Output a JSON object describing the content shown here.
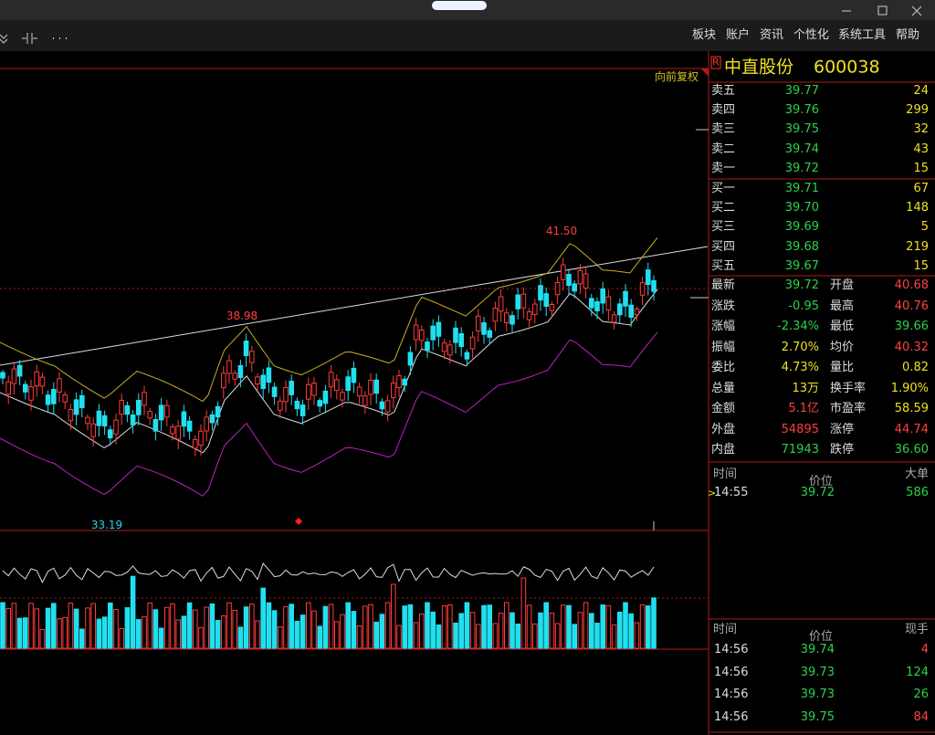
{
  "window": {
    "menu": [
      "板块",
      "账户",
      "资讯",
      "个性化",
      "系统工具",
      "帮助"
    ]
  },
  "chart": {
    "adjust": "向前复权",
    "high": "41.50",
    "mid": "38.98",
    "low": "33.19"
  },
  "quote": {
    "flag": "R",
    "name": "中直股份",
    "code": "600038",
    "sell": [
      [
        "卖五",
        "39.77",
        "24"
      ],
      [
        "卖四",
        "39.76",
        "299"
      ],
      [
        "卖三",
        "39.75",
        "32"
      ],
      [
        "卖二",
        "39.74",
        "43"
      ],
      [
        "卖一",
        "39.72",
        "15"
      ]
    ],
    "buy": [
      [
        "买一",
        "39.71",
        "67"
      ],
      [
        "买二",
        "39.70",
        "148"
      ],
      [
        "买三",
        "39.69",
        "5"
      ],
      [
        "买四",
        "39.68",
        "219"
      ],
      [
        "买五",
        "39.67",
        "15"
      ]
    ],
    "stats": [
      [
        {
          "label": "最新",
          "value": "39.72",
          "color": "#2ed14a"
        },
        {
          "label": "开盘",
          "value": "40.68",
          "color": "#ff4040"
        }
      ],
      [
        {
          "label": "涨跌",
          "value": "-0.95",
          "color": "#2ed14a"
        },
        {
          "label": "最高",
          "value": "40.76",
          "color": "#ff4040"
        }
      ],
      [
        {
          "label": "涨幅",
          "value": "-2.34%",
          "color": "#2ed14a"
        },
        {
          "label": "最低",
          "value": "39.66",
          "color": "#2ed14a"
        }
      ],
      [
        {
          "label": "振幅",
          "value": "2.70%",
          "color": "#f0e020"
        },
        {
          "label": "均价",
          "value": "40.32",
          "color": "#ff4040"
        }
      ],
      [
        {
          "label": "委比",
          "value": "4.73%",
          "color": "#f0e020"
        },
        {
          "label": "量比",
          "value": "0.82",
          "color": "#f0e020"
        }
      ],
      [
        {
          "label": "总量",
          "value": "13万",
          "color": "#f0e020"
        },
        {
          "label": "换手率",
          "value": "1.90%",
          "color": "#f0e020"
        }
      ],
      [
        {
          "label": "金额",
          "value": "5.1亿",
          "color": "#ff4040"
        },
        {
          "label": "市盈率",
          "value": "58.59",
          "color": "#f0e020"
        }
      ],
      [
        {
          "label": "外盘",
          "value": "54895",
          "color": "#ff4040"
        },
        {
          "label": "涨停",
          "value": "44.74",
          "color": "#ff4040"
        }
      ],
      [
        {
          "label": "内盘",
          "value": "71943",
          "color": "#2ed14a"
        },
        {
          "label": "跌停",
          "value": "36.60",
          "color": "#2ed14a"
        }
      ]
    ],
    "big_orders": {
      "header": [
        "时间",
        "价位",
        "大单"
      ],
      "rows": [
        {
          "marker": ">",
          "cells": [
            "14:55",
            "39.72",
            "586"
          ],
          "color": "#2ed14a"
        }
      ]
    },
    "trades": {
      "header": [
        "时间",
        "价位",
        "现手"
      ],
      "rows": [
        {
          "cells": [
            "14:56",
            "39.74",
            "4"
          ],
          "color": "#ff4040"
        },
        {
          "cells": [
            "14:56",
            "39.73",
            "124"
          ],
          "color": "#2ed14a"
        },
        {
          "cells": [
            "14:56",
            "39.73",
            "26"
          ],
          "color": "#2ed14a"
        },
        {
          "cells": [
            "14:56",
            "39.75",
            "84"
          ],
          "color": "#ff4040"
        }
      ]
    }
  }
}
